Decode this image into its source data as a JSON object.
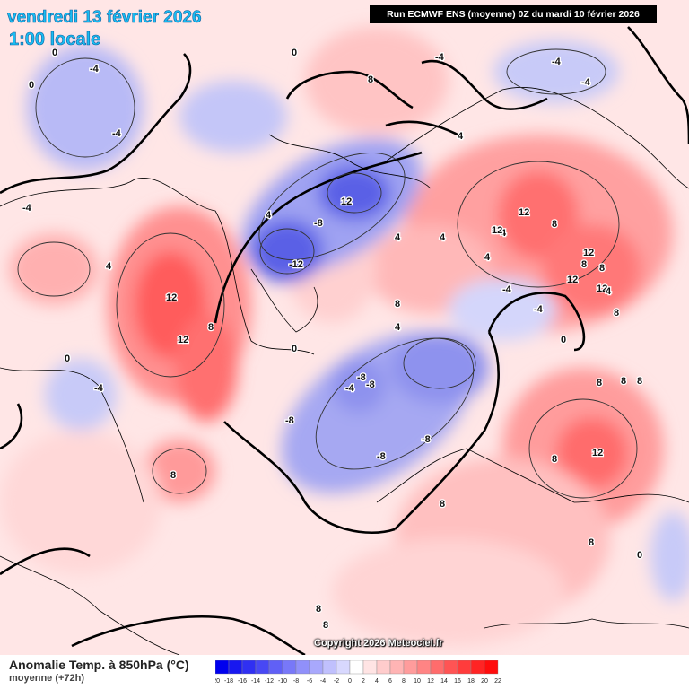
{
  "header": {
    "date": "vendredi 13 février 2026",
    "time": "1:00 locale",
    "run": "Run ECMWF ENS (moyenne) 0Z du mardi 10 février 2026"
  },
  "footer": {
    "variable": "Anomalie Temp. à 850hPa (°C)",
    "subtitle": "moyenne  (+72h)",
    "copyright": "Copyright 2026 Meteociel.fr"
  },
  "legend": {
    "ticks": [
      "-20",
      "-18",
      "-16",
      "-14",
      "-12",
      "-10",
      "-8",
      "-6",
      "-4",
      "-2",
      "0",
      "2",
      "4",
      "6",
      "8",
      "10",
      "12",
      "14",
      "16",
      "18",
      "20",
      "22"
    ],
    "colors": [
      "#0000ee",
      "#1818f0",
      "#3030f2",
      "#4848f4",
      "#6060f6",
      "#7878f8",
      "#9090fa",
      "#a8a8fc",
      "#c0c0fd",
      "#d8d8fe",
      "#ffffff",
      "#ffe4e4",
      "#ffcccc",
      "#ffb4b4",
      "#ff9c9c",
      "#ff8484",
      "#ff6c6c",
      "#ff5454",
      "#ff3c3c",
      "#ff2424",
      "#ff0c0c"
    ]
  },
  "contour_labels": [
    {
      "text": "0"
    },
    {
      "text": "0"
    },
    {
      "text": "-4"
    },
    {
      "text": "-4"
    },
    {
      "text": "-4"
    },
    {
      "text": "8"
    },
    {
      "text": "0"
    },
    {
      "text": "-4"
    },
    {
      "text": "-4"
    },
    {
      "text": "-4"
    },
    {
      "text": "4"
    },
    {
      "text": "4"
    },
    {
      "text": "4"
    },
    {
      "text": "12"
    },
    {
      "text": "-8"
    },
    {
      "text": "-12"
    },
    {
      "text": "4"
    },
    {
      "text": "4"
    },
    {
      "text": "12"
    },
    {
      "text": "12"
    },
    {
      "text": "4"
    },
    {
      "text": "8"
    },
    {
      "text": "8"
    },
    {
      "text": "12"
    },
    {
      "text": "8"
    },
    {
      "text": "8"
    },
    {
      "text": "12"
    },
    {
      "text": "12"
    },
    {
      "text": "4"
    },
    {
      "text": "-4"
    },
    {
      "text": "-4"
    },
    {
      "text": "4"
    },
    {
      "text": "0"
    },
    {
      "text": "12"
    },
    {
      "text": "8"
    },
    {
      "text": "12"
    },
    {
      "text": "8"
    },
    {
      "text": "0"
    },
    {
      "text": "0"
    },
    {
      "text": "-4"
    },
    {
      "text": "-8"
    },
    {
      "text": "-8"
    },
    {
      "text": "-4"
    },
    {
      "text": "-8"
    },
    {
      "text": "-8"
    },
    {
      "text": "-8"
    },
    {
      "text": "8"
    },
    {
      "text": "12"
    },
    {
      "text": "8"
    },
    {
      "text": "8"
    },
    {
      "text": "4"
    },
    {
      "text": "8"
    },
    {
      "text": "8"
    },
    {
      "text": "8"
    },
    {
      "text": "8"
    },
    {
      "text": "8"
    },
    {
      "text": "8"
    },
    {
      "text": "8"
    },
    {
      "text": "0"
    }
  ]
}
